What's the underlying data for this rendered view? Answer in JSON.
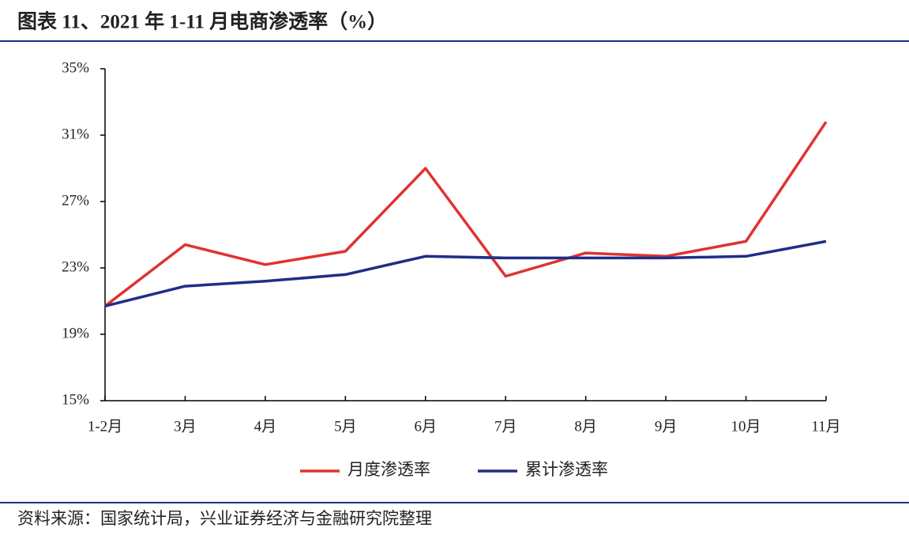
{
  "chart_data": {
    "type": "line",
    "title": "图表 11、2021 年 1-11 月电商渗透率（%）",
    "source": "资料来源：国家统计局，兴业证券经济与金融研究院整理",
    "categories": [
      "1-2月",
      "3月",
      "4月",
      "5月",
      "6月",
      "7月",
      "8月",
      "9月",
      "10月",
      "11月"
    ],
    "series": [
      {
        "name": "月度渗透率",
        "color": "#e03232",
        "values": [
          20.7,
          24.4,
          23.2,
          24.0,
          29.0,
          22.5,
          23.9,
          23.7,
          24.6,
          31.8
        ]
      },
      {
        "name": "累计渗透率",
        "color": "#1f2e86",
        "values": [
          20.7,
          21.9,
          22.2,
          22.6,
          23.7,
          23.6,
          23.6,
          23.6,
          23.7,
          24.6
        ]
      }
    ],
    "ylim": [
      15,
      35
    ],
    "yticks": [
      {
        "value": 15,
        "label": "15%"
      },
      {
        "value": 19,
        "label": "19%"
      },
      {
        "value": 23,
        "label": "23%"
      },
      {
        "value": 27,
        "label": "27%"
      },
      {
        "value": 31,
        "label": "31%"
      },
      {
        "value": 35,
        "label": "35%"
      }
    ],
    "legend": "bottom",
    "grid": false
  }
}
